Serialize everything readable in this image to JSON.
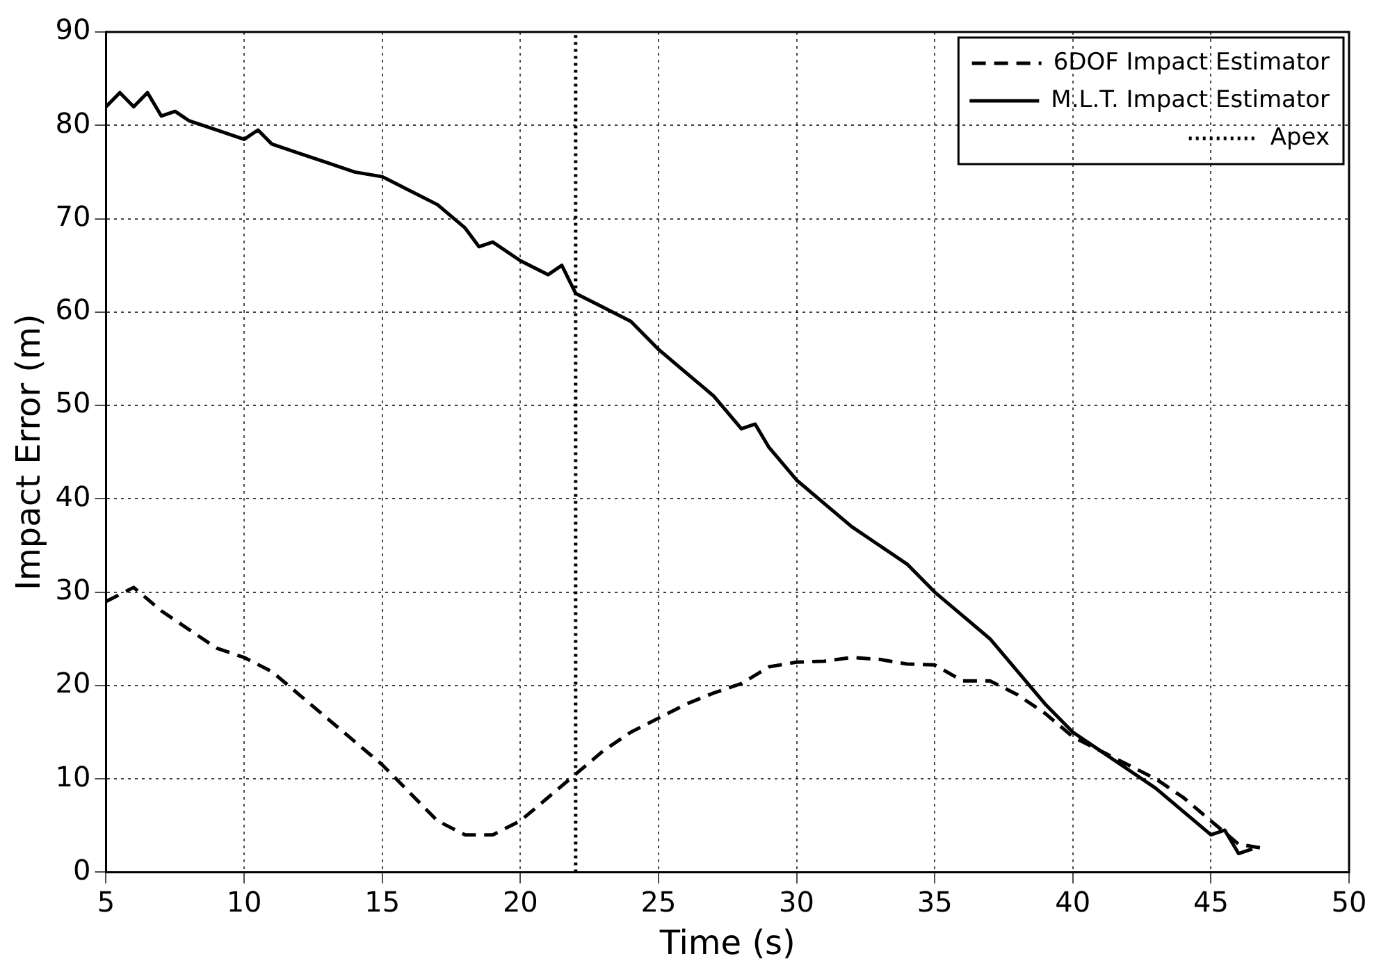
{
  "chart_data": {
    "type": "line",
    "xlabel": "Time (s)",
    "ylabel": "Impact Error (m)",
    "xlim": [
      5,
      50
    ],
    "xticks": [
      5,
      10,
      15,
      20,
      25,
      30,
      35,
      40,
      45,
      50
    ],
    "ylim": [
      0,
      90
    ],
    "yticks": [
      0,
      10,
      20,
      30,
      40,
      50,
      60,
      70,
      80,
      90
    ],
    "grid": true,
    "legend": "top right",
    "marker": "none",
    "series": [
      {
        "name": "6DOF Impact Estimator",
        "color": "#000000",
        "line_style": "dashed",
        "x": [
          5,
          6,
          7,
          8,
          9,
          10,
          11,
          12,
          13,
          14,
          15,
          16,
          17,
          18,
          19,
          20,
          21,
          22,
          23,
          24,
          25,
          26,
          27,
          28,
          29,
          30,
          31,
          32,
          33,
          34,
          35,
          36,
          37,
          38,
          39,
          40,
          41,
          42,
          43,
          44,
          45,
          46,
          47
        ],
        "values": [
          29,
          30.5,
          28,
          26,
          24,
          23,
          21.5,
          19,
          16.5,
          14,
          11.5,
          8.5,
          5.5,
          4,
          4,
          5.5,
          8,
          10.5,
          13,
          15,
          16.5,
          18,
          19.2,
          20.2,
          22,
          22.5,
          22.6,
          23,
          22.8,
          22.3,
          22.2,
          20.5,
          20.5,
          19,
          17,
          14.5,
          13,
          11.5,
          10,
          8,
          5.5,
          3,
          2.5
        ]
      },
      {
        "name": "M.L.T. Impact Estimator",
        "color": "#000000",
        "line_style": "solid",
        "x": [
          5,
          5.5,
          6,
          6.5,
          7,
          7.5,
          8,
          9,
          10,
          10.5,
          11,
          12,
          13,
          14,
          15,
          16,
          17,
          18,
          18.5,
          19,
          20,
          21,
          21.5,
          22,
          23,
          24,
          25,
          26,
          27,
          28,
          28.5,
          29,
          30,
          31,
          32,
          33,
          34,
          35,
          36,
          37,
          38,
          39,
          40,
          41,
          42,
          43,
          44,
          45,
          45.5,
          46,
          46.5
        ],
        "values": [
          82,
          83.5,
          82,
          83.5,
          81,
          81.5,
          80.5,
          79.5,
          78.5,
          79.5,
          78,
          77,
          76,
          75,
          74.5,
          73,
          71.5,
          69,
          67,
          67.5,
          65.5,
          64,
          65,
          62,
          60.5,
          59,
          56,
          53.5,
          51,
          47.5,
          48,
          45.5,
          42,
          39.5,
          37,
          35,
          33,
          30,
          27.5,
          25,
          21.5,
          18,
          15,
          13,
          11,
          9,
          6.5,
          4,
          4.5,
          2,
          2.5
        ]
      },
      {
        "name": "Apex",
        "color": "#000000",
        "line_style": "dotted",
        "x": [
          22,
          22
        ],
        "values": [
          0,
          90
        ]
      }
    ]
  }
}
